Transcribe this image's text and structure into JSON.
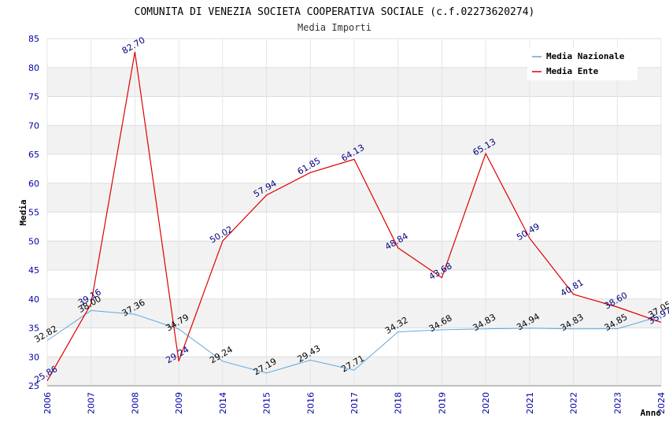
{
  "chart_data": {
    "type": "line",
    "title": "COMUNITA DI VENEZIA SOCIETA COOPERATIVA SOCIALE (c.f.02273620274)",
    "subtitle": "Media Importi",
    "ylabel": "Media",
    "xlabel": "Anno",
    "ylim": [
      25,
      85
    ],
    "yticks": [
      25,
      30,
      35,
      40,
      45,
      50,
      55,
      60,
      65,
      70,
      75,
      80,
      85
    ],
    "categories": [
      "2006",
      "2007",
      "2008",
      "2009",
      "2014",
      "2015",
      "2016",
      "2017",
      "2018",
      "2019",
      "2020",
      "2021",
      "2022",
      "2023",
      "2024"
    ],
    "series": [
      {
        "name": "Media Nazionale",
        "color": "#5fa8e0",
        "values": [
          32.82,
          38.0,
          37.36,
          34.79,
          29.24,
          27.19,
          29.43,
          27.71,
          34.32,
          34.68,
          34.83,
          34.94,
          34.83,
          34.85,
          37.05
        ],
        "labels": [
          "32.82",
          "38.00",
          "37.36",
          "34.79",
          "29.24",
          "27.19",
          "29.43",
          "27.71",
          "34.32",
          "34.68",
          "34.83",
          "34.94",
          "34.83",
          "34.85",
          "37.05"
        ]
      },
      {
        "name": "Media Ente",
        "color": "#dd0000",
        "values": [
          25.86,
          39.16,
          82.7,
          29.24,
          50.02,
          57.94,
          61.85,
          64.13,
          48.84,
          43.68,
          65.13,
          50.49,
          40.81,
          38.6,
          35.97
        ],
        "labels": [
          "25.86",
          "39.16",
          "82.70",
          "29.24",
          "50.02",
          "57.94",
          "61.85",
          "64.13",
          "48.84",
          "43.68",
          "65.13",
          "50.49",
          "40.81",
          "38.60",
          "35.97"
        ]
      }
    ],
    "grid": true,
    "legend_position": "top-right"
  }
}
